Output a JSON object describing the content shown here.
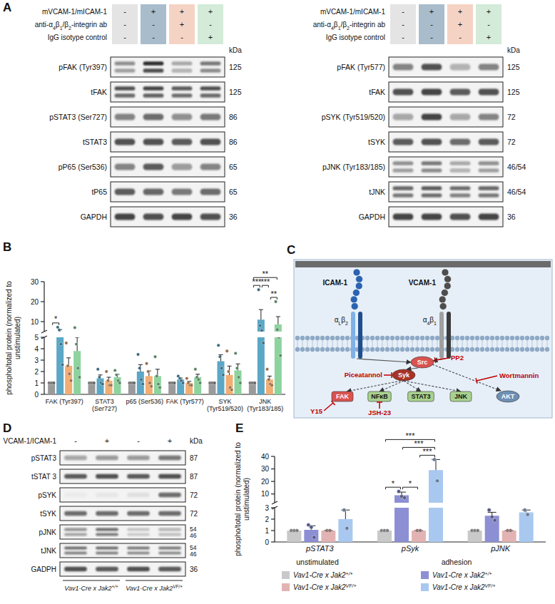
{
  "panel_letters": [
    "A",
    "B",
    "C",
    "D",
    "E"
  ],
  "blot_a": [
    {
      "conditions": [
        {
          "label": "mVCAM-1/mICAM-1",
          "signs": [
            "-",
            "+",
            "+",
            "+"
          ]
        },
        {
          "label": "anti-α4β1/β2-integrin ab",
          "signs": [
            "-",
            "-",
            "+",
            "-"
          ]
        },
        {
          "label": "IgG isotype control",
          "signs": [
            "-",
            "-",
            "-",
            "+"
          ]
        }
      ],
      "unit": "kDa",
      "rows": [
        {
          "label": "pFAK (Tyr397)",
          "kda": [
            "125"
          ]
        },
        {
          "label": "tFAK",
          "kda": [
            "125"
          ]
        },
        {
          "label": "pSTAT3 (Ser727)",
          "kda": [
            "86"
          ]
        },
        {
          "label": "tSTAT3",
          "kda": [
            "86"
          ]
        },
        {
          "label": "pP65 (Ser536)",
          "kda": [
            "65"
          ]
        },
        {
          "label": "tP65",
          "kda": [
            "65"
          ]
        },
        {
          "label": "GAPDH",
          "kda": [
            "36"
          ]
        }
      ]
    },
    {
      "conditions": [
        {
          "label": "mVCAM-1/mICAM-1",
          "signs": [
            "-",
            "+",
            "+",
            "+"
          ]
        },
        {
          "label": "anti-α4β1/β2-integrin ab",
          "signs": [
            "-",
            "-",
            "+",
            "-"
          ]
        },
        {
          "label": "IgG isotype control",
          "signs": [
            "-",
            "-",
            "-",
            "+"
          ]
        }
      ],
      "unit": "kDa",
      "rows": [
        {
          "label": "pFAK (Tyr577)",
          "kda": [
            "125"
          ]
        },
        {
          "label": "tFAK",
          "kda": [
            "125"
          ]
        },
        {
          "label": "pSYK (Tyr519/520)",
          "kda": [
            "72"
          ]
        },
        {
          "label": "tSYK",
          "kda": [
            "72"
          ]
        },
        {
          "label": "pJNK (Tyr183/185)",
          "kda": [
            "46/54"
          ]
        },
        {
          "label": "tJNK",
          "kda": [
            "46/54"
          ]
        },
        {
          "label": "GAPDH",
          "kda": [
            "36"
          ]
        }
      ]
    }
  ],
  "chart_data": [
    {
      "type": "bar",
      "y_label": "phospho/total protein (normalized to unstimulated)",
      "categories": [
        "FAK (Tyr397)",
        "STAT3 (Ser727)",
        "p65 (Ser536)",
        "FAK (Tyr577)",
        "SYK (Tyr519/520)",
        "JNK (Tyr183/185)"
      ],
      "ylim": [
        0,
        30
      ],
      "ybreak": 5,
      "yticks": [
        0,
        1,
        2,
        3,
        4,
        5,
        10,
        20,
        30
      ],
      "series": [
        {
          "color": "#9a9a9a",
          "values": [
            1,
            1,
            1,
            1,
            1,
            1
          ],
          "err": [
            0,
            0,
            0,
            0,
            0,
            0
          ],
          "points": [
            [
              1,
              1,
              1,
              1
            ],
            [
              1,
              1,
              1,
              1
            ],
            [
              1,
              1,
              1,
              1
            ],
            [
              1,
              1,
              1,
              1
            ],
            [
              1,
              1,
              1,
              1
            ],
            [
              1,
              1,
              1,
              1
            ]
          ]
        },
        {
          "color": "#5aa7c6",
          "values": [
            5.0,
            1.4,
            2.0,
            1.3,
            2.9,
            11
          ],
          "err": [
            1.0,
            0.3,
            0.6,
            0.13,
            0.57,
            5
          ],
          "points": [
            [
              7.2,
              5.8,
              4.4,
              2.6
            ],
            [
              2.2,
              1.5,
              1.0,
              0.9
            ],
            [
              3.5,
              2.3,
              1.3,
              0.9
            ],
            [
              1.6,
              1.4,
              1.2,
              1.0
            ],
            [
              4.3,
              3.3,
              2.3,
              1.7
            ],
            [
              26,
              8,
              5.5,
              4.5
            ]
          ]
        },
        {
          "color": "#f2ad72",
          "values": [
            2.5,
            1.2,
            1.6,
            1.0,
            1.7,
            1.3
          ],
          "err": [
            0.7,
            0.3,
            0.45,
            0.14,
            0.78,
            0.3
          ],
          "points": [
            [
              4.5,
              2.5,
              1.8,
              1.2
            ],
            [
              2.0,
              1.2,
              0.8,
              0.8
            ],
            [
              2.7,
              2.0,
              1.0,
              0.7
            ],
            [
              1.4,
              1.0,
              0.8,
              0.8
            ],
            [
              3.8,
              2.0,
              0.6,
              0.4
            ],
            [
              2.2,
              1.3,
              0.9,
              0.8
            ]
          ]
        },
        {
          "color": "#8dd39e",
          "values": [
            3.8,
            1.5,
            1.6,
            1.5,
            2.1,
            8.6
          ],
          "err": [
            1.2,
            0.25,
            0.6,
            0.26,
            0.57,
            3.9
          ],
          "points": [
            [
              7.0,
              4.4,
              2.3,
              1.5
            ],
            [
              2.1,
              1.7,
              1.2,
              1.0
            ],
            [
              3.3,
              1.6,
              0.9,
              0.6
            ],
            [
              2.2,
              1.5,
              1.3,
              1.0
            ],
            [
              3.6,
              2.3,
              1.5,
              1.0
            ],
            [
              20,
              6,
              5,
              3.4
            ]
          ]
        }
      ],
      "annotations": [
        {
          "text": "*",
          "category": 0,
          "from": 0,
          "to": 1
        },
        {
          "text": "***",
          "category": 5,
          "from": 0,
          "to": 1
        },
        {
          "text": "**",
          "category": 5,
          "from": 2,
          "to": 3
        },
        {
          "text": "***",
          "category": 5,
          "from": 1,
          "to": 2
        },
        {
          "text": "**",
          "category": 5,
          "from": 0,
          "to": 3
        }
      ]
    },
    {
      "type": "bar",
      "y_label": "phospho/total protein (normalized to unstimulated)",
      "categories": [
        "pSTAT3",
        "pSyk",
        "pJNK"
      ],
      "ylim": [
        0,
        40
      ],
      "ybreak": 3,
      "yticks": [
        0,
        1,
        2,
        3,
        10,
        20,
        30,
        40
      ],
      "legend": "bottom",
      "legend_groups": [
        "unstimulated",
        "adhesion"
      ],
      "series": [
        {
          "name": "Vav1-Cre x Jak2+/+",
          "group": 0,
          "color": "#c9c9c9",
          "values": [
            1,
            1,
            1
          ],
          "err": [
            0,
            0,
            0
          ],
          "points": [
            [
              1,
              1,
              1
            ],
            [
              1,
              1,
              1
            ],
            [
              1,
              1,
              1
            ]
          ]
        },
        {
          "name": "Vav1-Cre x Jak2+/+",
          "group": 1,
          "color": "#8d8fd4",
          "values": [
            1.07,
            9,
            2.3
          ],
          "err": [
            0.35,
            2.5,
            0.3
          ],
          "points": [
            [
              1.5,
              1.3,
              0.4
            ],
            [
              12,
              8,
              7
            ],
            [
              2.8,
              2.2,
              1.9
            ]
          ]
        },
        {
          "name": "Vav1-Cre x Jak2VF/+",
          "group": 0,
          "color": "#e3b3b3",
          "values": [
            1,
            1,
            1
          ],
          "err": [
            0,
            0,
            0
          ],
          "points": [
            [
              1,
              1
            ],
            [
              1,
              1
            ],
            [
              1,
              1
            ]
          ]
        },
        {
          "name": "Vav1-Cre x Jak2VF/+",
          "group": 1,
          "color": "#a8c8f0",
          "values": [
            2,
            29,
            2.6
          ],
          "err": [
            0.8,
            8.5,
            0.2
          ],
          "points": [
            [
              2.8,
              1.2
            ],
            [
              37.5,
              20.5
            ],
            [
              2.8,
              2.4
            ]
          ]
        }
      ],
      "annotations": [
        {
          "text": "*",
          "category": 1,
          "from": 0,
          "to": 1
        },
        {
          "text": "*",
          "category": 1,
          "from": 1,
          "to": 2
        },
        {
          "text": "***",
          "category": 1,
          "from": 2,
          "to": 3
        },
        {
          "text": "***",
          "category": 1,
          "from": 1,
          "to": 3
        },
        {
          "text": "***",
          "category": 1,
          "from": 0,
          "to": 3
        }
      ]
    }
  ],
  "diagram_c": {
    "ligands": [
      "ICAM-1",
      "VCAM-1"
    ],
    "integrins": [
      "αLβ2",
      "α4β1"
    ],
    "kinases": [
      "Src",
      "Syk",
      "FAK"
    ],
    "effectors": [
      "NFκB",
      "STAT3",
      "JNK",
      "AKT"
    ],
    "inhibitors": [
      {
        "label": "Piceatannol",
        "target": "Syk"
      },
      {
        "label": "PP2",
        "target": "Src"
      },
      {
        "label": "Wortmannin",
        "target": "AKT"
      },
      {
        "label": "Y15",
        "target": "FAK"
      },
      {
        "label": "JSH-23",
        "target": "NFκB"
      }
    ]
  },
  "blot_d": {
    "conditions": [
      {
        "label": "VCAM-1/ICAM-1",
        "signs": [
          "-",
          "+",
          "-",
          "+"
        ]
      }
    ],
    "unit": "kDa",
    "rows": [
      {
        "label": "pSTAT3",
        "kda": [
          "87"
        ]
      },
      {
        "label": "tSTAT 3",
        "kda": [
          "87"
        ]
      },
      {
        "label": "pSYK",
        "kda": [
          "72"
        ]
      },
      {
        "label": "tSYK",
        "kda": [
          "72"
        ]
      },
      {
        "label": "pJNK",
        "kda": [
          "54",
          "46"
        ]
      },
      {
        "label": "tJNK",
        "kda": [
          "54",
          "46"
        ]
      },
      {
        "label": "GADPH",
        "kda": [
          "36"
        ]
      }
    ],
    "genotypes": [
      "Vav1-Cre x Jak2+/+",
      "Vav1-Cre x Jak2VF/+"
    ]
  }
}
